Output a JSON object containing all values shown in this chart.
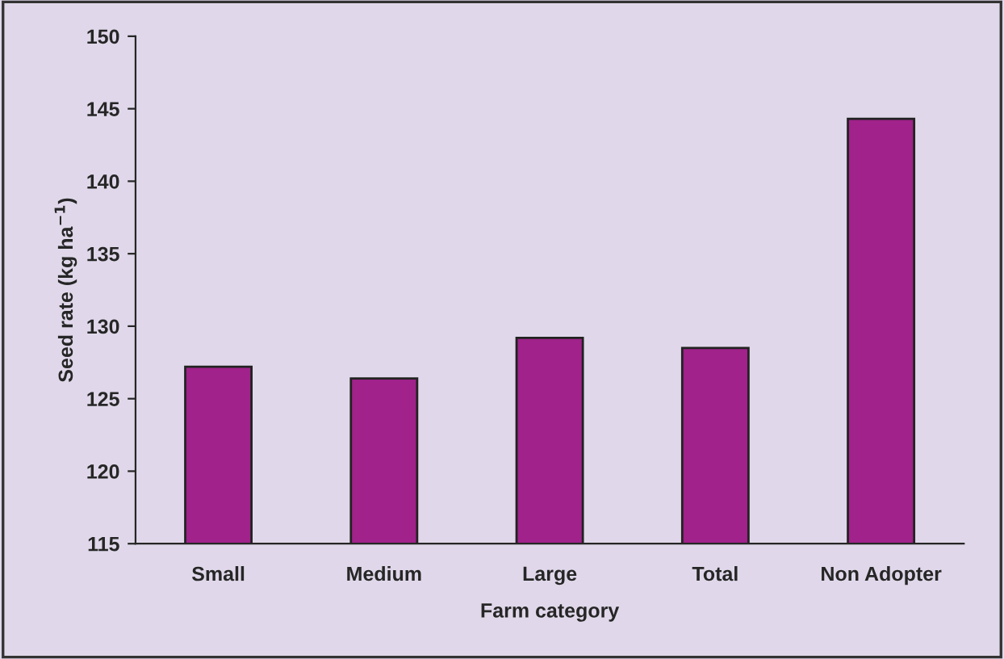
{
  "chart_data": {
    "type": "bar",
    "xlabel": "Farm category",
    "ylabel": "Seed rate (kg ha$^{−1}$)",
    "categories": [
      "Small",
      "Medium",
      "Large",
      "Total",
      "Non Adopter"
    ],
    "values": [
      127.2,
      126.4,
      129.2,
      128.5,
      144.3
    ],
    "color": "#a0228a",
    "ylim": [
      115,
      150
    ],
    "yticks": [
      115,
      120,
      125,
      130,
      135,
      140,
      145,
      150
    ],
    "grid": false
  }
}
